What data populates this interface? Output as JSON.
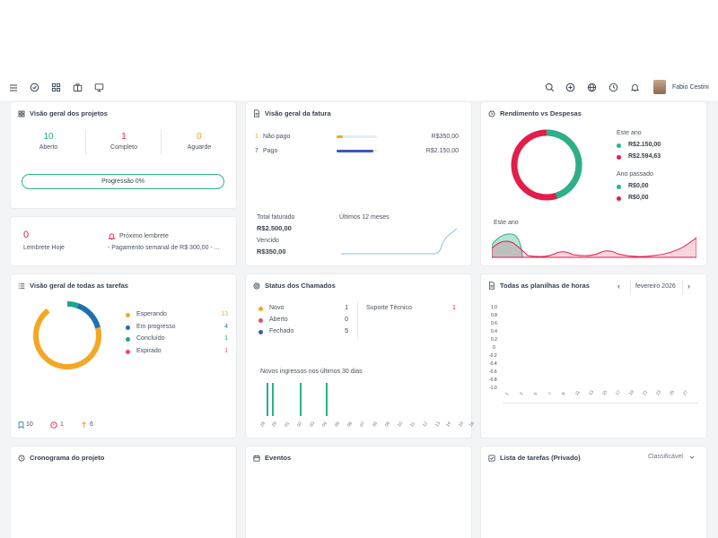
{
  "topbar": {
    "user_name": "Fabio Cestini"
  },
  "projects": {
    "title": "Visão geral dos projetos",
    "stats": [
      {
        "value": "10",
        "label": "Aberto",
        "color": "#1ca789"
      },
      {
        "value": "1",
        "label": "Completo",
        "color": "#e11d48"
      },
      {
        "value": "0",
        "label": "Aguarde",
        "color": "#f59e0b"
      }
    ],
    "progress_label": "Progressão 0%",
    "progress": 0
  },
  "invoice": {
    "title": "Visão geral da fatura",
    "rows": [
      {
        "count": "1",
        "label": "Não pago",
        "amount": "R$350,00",
        "color": "#f5a623",
        "fill": 0.15
      },
      {
        "count": "7",
        "label": "Pago",
        "amount": "R$2.150,00",
        "color": "#3b5bb5",
        "fill": 0.9
      }
    ],
    "total_label": "Total faturado",
    "total_value": "R$2.500,00",
    "overdue_label": "Vencido",
    "overdue_value": "R$350,00",
    "last12_label": "Últimos 12 meses"
  },
  "income": {
    "title": "Rendimento vs Despesas",
    "this_year_label": "Este ano",
    "this_year_income": "R$2.150,00",
    "this_year_expense": "R$2.594,63",
    "last_year_label": "Ano passado",
    "last_year_income": "R$0,00",
    "last_year_expense": "R$0,00",
    "chart_label": "Este ano",
    "income_color": "#2bb18a",
    "expense_color": "#e11d48"
  },
  "reminders": {
    "today_count": "0",
    "today_label": "Lembrete Hoje",
    "next_label": "Próximo lembrete",
    "next_text": "- Pagamento semanal de R$ 300,00 - ..."
  },
  "tasks": {
    "title": "Visão geral de todas as tarefas",
    "items": [
      {
        "label": "Esperando",
        "count": "13",
        "color": "#f5a623"
      },
      {
        "label": "Em progresso",
        "count": "4",
        "color": "#1f6fb2"
      },
      {
        "label": "Concluído",
        "count": "1",
        "color": "#1ca789"
      },
      {
        "label": "Expirado",
        "count": "1",
        "color": "#e84a6f"
      }
    ],
    "footer": [
      {
        "icon": "bookmark-icon",
        "value": "10"
      },
      {
        "icon": "clock-alert-icon",
        "value": "1"
      },
      {
        "icon": "arrow-up-icon",
        "value": "6"
      }
    ]
  },
  "tickets": {
    "title": "Status dos Chamados",
    "statuses": [
      {
        "label": "Novo",
        "count": "1",
        "color": "#f5a623"
      },
      {
        "label": "Aberto",
        "count": "0",
        "color": "#e84a6f"
      },
      {
        "label": "Fechado",
        "count": "5",
        "color": "#3b5bb5"
      }
    ],
    "support_label": "Suporte Técnico",
    "support_count": "1",
    "new_label": "Novos ingressos nos últimos 30 dias",
    "days": [
      "28",
      "29",
      "01",
      "02",
      "03",
      "04",
      "05",
      "06",
      "07",
      "08",
      "09",
      "10",
      "11",
      "12",
      "13",
      "14",
      "15",
      "16"
    ],
    "bar_values": [
      0,
      1,
      1,
      0,
      0,
      1,
      0,
      0,
      1,
      0,
      0,
      0,
      0,
      0,
      0,
      0,
      0,
      0
    ]
  },
  "timesheets": {
    "title": "Todas as planilhas de horas",
    "month": "fevereiro 2026",
    "y_ticks": [
      "1.0",
      "0.8",
      "0.6",
      "0.4",
      "0.2",
      "0",
      "-0.2",
      "-0.4",
      "-0.6",
      "-0.8",
      "-1.0"
    ],
    "x_ticks": [
      "1",
      "3",
      "5",
      "7",
      "9",
      "11",
      "13",
      "15",
      "17",
      "19",
      "21",
      "23",
      "25",
      "27"
    ]
  },
  "bottom": {
    "schedule_title": "Cronograma do projeto",
    "events_title": "Eventos",
    "private_tasks_title": "Lista de tarefas (Privado)",
    "sortable_label": "Classificável"
  }
}
